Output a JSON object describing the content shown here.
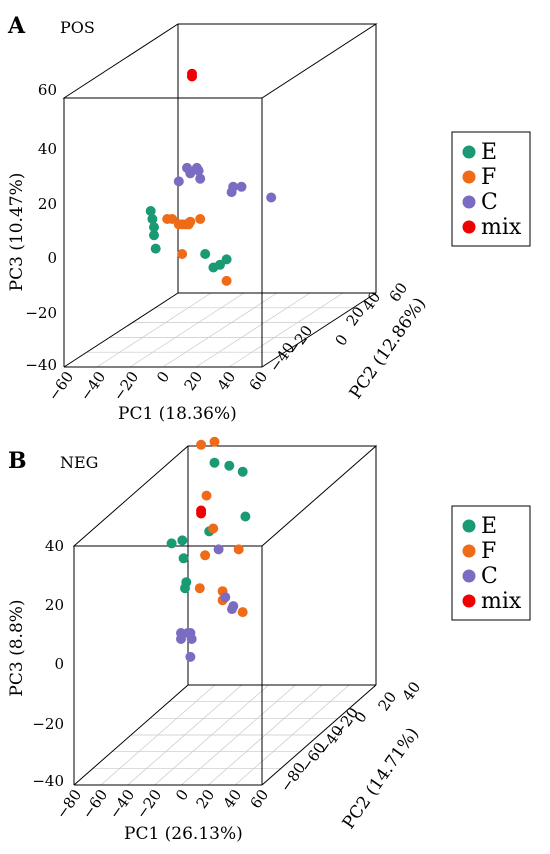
{
  "colors": {
    "E": "#1a9a74",
    "F": "#f06b17",
    "C": "#7b6cc2",
    "mix": "#f00000"
  },
  "legend": [
    {
      "key": "E",
      "label": "E"
    },
    {
      "key": "F",
      "label": "F"
    },
    {
      "key": "C",
      "label": "C"
    },
    {
      "key": "mix",
      "label": "mix"
    }
  ],
  "chart_data": [
    {
      "type": "scatter",
      "panel": "A",
      "mode": "POS",
      "xlabel": "PC1 (18.36%)",
      "ylabel": "PC2 (12.86%)",
      "zlabel": "PC3 (10.47%)",
      "xlim": [
        -60,
        60
      ],
      "ylim": [
        -50,
        60
      ],
      "zlim": [
        -40,
        60
      ],
      "xticks": [
        "−60",
        "−40",
        "−20",
        "0",
        "20",
        "40",
        "60"
      ],
      "yticks": [
        "−40",
        "−20",
        "0",
        "20",
        "40",
        "60"
      ],
      "zticks": [
        "−40",
        "−20",
        "0",
        "20",
        "40",
        "60"
      ],
      "grid": true,
      "legend_position": "right",
      "series": [
        {
          "name": "E",
          "points": [
            [
              -20,
              -30,
              13
            ],
            [
              -19,
              -30,
              10
            ],
            [
              -18,
              -30,
              7
            ],
            [
              -18,
              -30,
              4
            ],
            [
              -17,
              -30,
              -1
            ],
            [
              13,
              -30,
              -3
            ],
            [
              18,
              -30,
              -8
            ],
            [
              22,
              -30,
              -7
            ],
            [
              26,
              -30,
              -5
            ]
          ]
        },
        {
          "name": "F",
          "points": [
            [
              -10,
              -30,
              10
            ],
            [
              -7,
              -30,
              10
            ],
            [
              -3,
              -30,
              8
            ],
            [
              -1,
              -30,
              8
            ],
            [
              1,
              -30,
              8
            ],
            [
              3,
              -30,
              8
            ],
            [
              4,
              -30,
              9
            ],
            [
              10,
              -30,
              10
            ],
            [
              -1,
              -30,
              -3
            ],
            [
              26,
              -30,
              -13
            ]
          ]
        },
        {
          "name": "C",
          "points": [
            [
              -3,
              -30,
              24
            ],
            [
              2,
              -30,
              29
            ],
            [
              4,
              -30,
              27
            ],
            [
              8,
              -30,
              29
            ],
            [
              9,
              -30,
              28
            ],
            [
              10,
              -30,
              25
            ],
            [
              29,
              -30,
              20
            ],
            [
              30,
              -30,
              22
            ],
            [
              35,
              -30,
              22
            ],
            [
              53,
              -30,
              18
            ]
          ]
        },
        {
          "name": "mix",
          "points": [
            [
              5,
              -30,
              63
            ],
            [
              5,
              -30,
              64
            ]
          ]
        }
      ]
    },
    {
      "type": "scatter",
      "panel": "B",
      "mode": "NEG",
      "xlabel": "PC1 (26.13%)",
      "ylabel": "PC2 (14.71%)",
      "zlabel": "PC3 (8.8%)",
      "xlim": [
        -80,
        60
      ],
      "ylim": [
        -90,
        40
      ],
      "zlim": [
        -40,
        40
      ],
      "xticks": [
        "−80",
        "−60",
        "−40",
        "−20",
        "0",
        "20",
        "40",
        "60"
      ],
      "yticks": [
        "−80",
        "−60",
        "−40",
        "−20",
        "0",
        "20",
        "40"
      ],
      "zticks": [
        "−40",
        "−20",
        "0",
        "20",
        "40"
      ],
      "grid": true,
      "legend_position": "right",
      "series": [
        {
          "name": "E",
          "points": [
            [
              -40,
              -40,
              28
            ],
            [
              -32,
              -40,
              29
            ],
            [
              -31,
              -40,
              23
            ],
            [
              -29,
              -40,
              15
            ],
            [
              -30,
              -40,
              13
            ],
            [
              -12,
              -40,
              32
            ],
            [
              -8,
              -40,
              55
            ],
            [
              3,
              -40,
              54
            ],
            [
              13,
              -40,
              52
            ],
            [
              15,
              -40,
              37
            ]
          ]
        },
        {
          "name": "F",
          "points": [
            [
              -14,
              -40,
              44
            ],
            [
              -9,
              -40,
              33
            ],
            [
              -15,
              -40,
              24
            ],
            [
              -19,
              -40,
              13
            ],
            [
              -18,
              -40,
              61
            ],
            [
              -2,
              -40,
              12
            ],
            [
              -2,
              -40,
              9
            ],
            [
              13,
              -40,
              5
            ],
            [
              10,
              -40,
              26
            ],
            [
              -8,
              -40,
              62
            ]
          ]
        },
        {
          "name": "C",
          "points": [
            [
              -33,
              -40,
              -2
            ],
            [
              -33,
              -40,
              -4
            ],
            [
              -28,
              -40,
              -2
            ],
            [
              -26,
              -40,
              -2
            ],
            [
              -25,
              -40,
              -4
            ],
            [
              -26,
              -40,
              -10
            ],
            [
              -5,
              -40,
              26
            ],
            [
              0,
              -40,
              10
            ],
            [
              5,
              -40,
              6
            ],
            [
              6,
              -40,
              7
            ]
          ]
        },
        {
          "name": "mix",
          "points": [
            [
              -18,
              -40,
              39
            ],
            [
              -18,
              -40,
              38
            ]
          ]
        }
      ]
    }
  ]
}
